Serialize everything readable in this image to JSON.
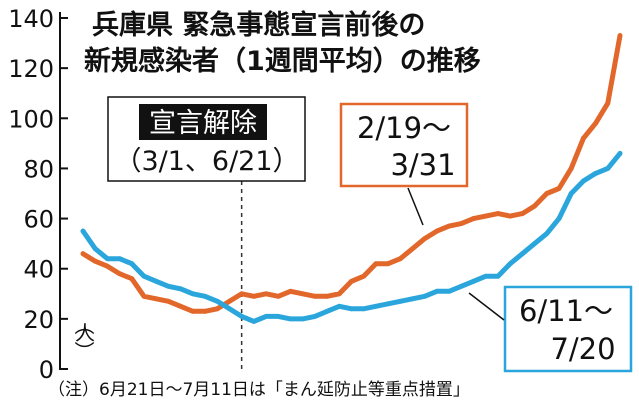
{
  "chart_data": {
    "type": "line",
    "title_lines": [
      "兵庫県 緊急事態宣言前後の",
      "新規感染者（1週間平均）の推移"
    ],
    "y_unit": "人",
    "ylim": [
      0,
      140
    ],
    "y_ticks": [
      "0",
      "20",
      "40",
      "60",
      "80",
      "100",
      "120",
      "140"
    ],
    "grid": false,
    "x_points": 45,
    "marker": {
      "label_lines": [
        "宣言解除",
        "（3/1、6/21）"
      ],
      "x_index": 13
    },
    "series": [
      {
        "name_lines": [
          "2/19〜",
          "3/31"
        ],
        "color": "#e2672a",
        "values": [
          46,
          43,
          41,
          38,
          36,
          29,
          28,
          27,
          25,
          23,
          23,
          24,
          27,
          30,
          29,
          30,
          29,
          31,
          30,
          29,
          29,
          30,
          35,
          37,
          42,
          42,
          44,
          48,
          52,
          55,
          57,
          58,
          60,
          61,
          62,
          61,
          62,
          65,
          70,
          72,
          80,
          92,
          98,
          106,
          133
        ]
      },
      {
        "name_lines": [
          "6/11〜",
          "7/20"
        ],
        "color": "#2ba6dc",
        "values": [
          55,
          48,
          44,
          44,
          42,
          37,
          35,
          33,
          32,
          30,
          29,
          27,
          24,
          21,
          19,
          21,
          21,
          20,
          20,
          21,
          23,
          25,
          24,
          24,
          25,
          26,
          27,
          28,
          29,
          31,
          31,
          33,
          35,
          37,
          37,
          42,
          46,
          50,
          54,
          60,
          70,
          75,
          78,
          80,
          86
        ]
      }
    ],
    "footnote": "（注）6月21日〜7月11日は「まん延防止等重点措置」"
  }
}
